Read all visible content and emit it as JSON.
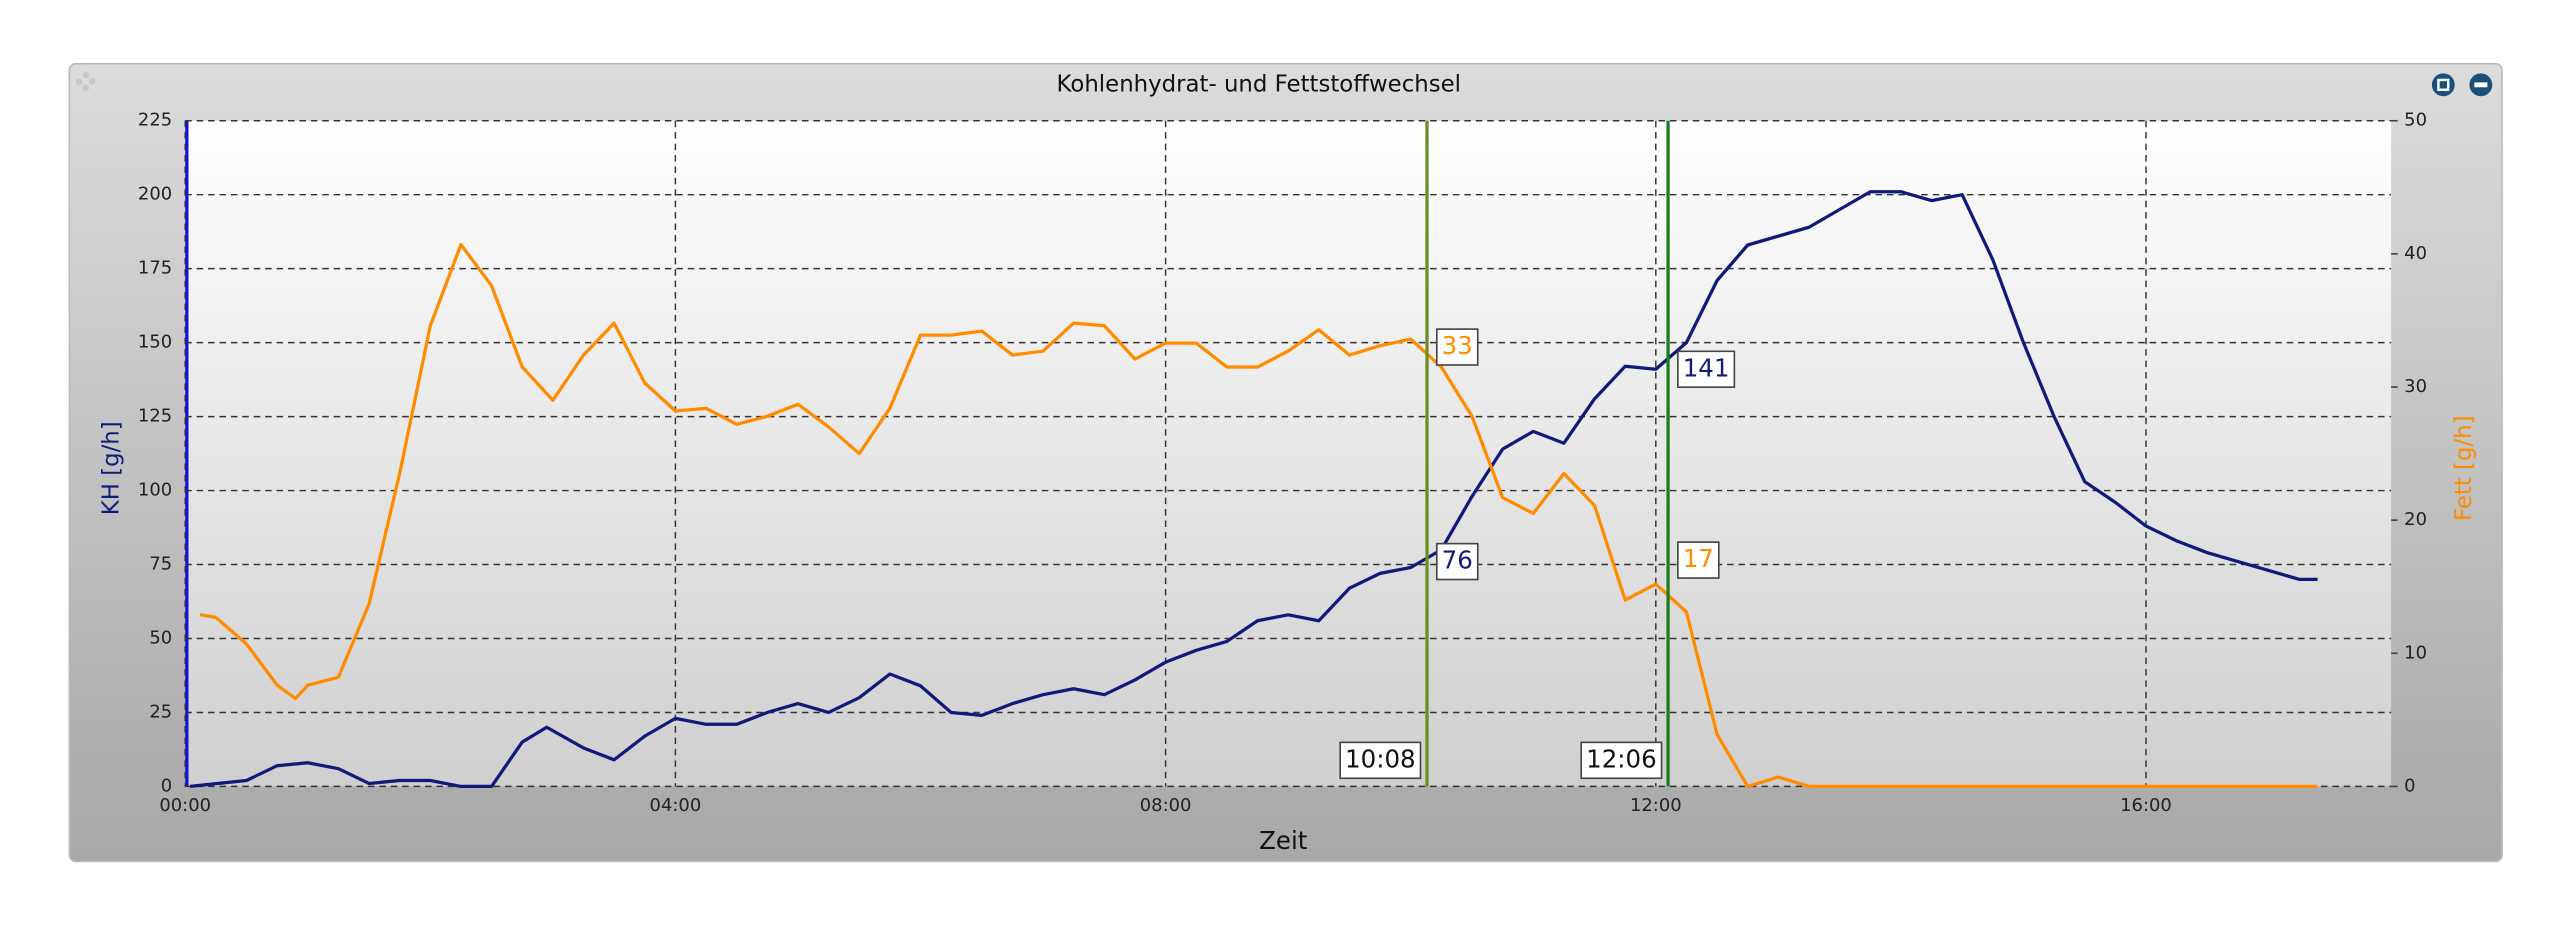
{
  "chart_data": {
    "type": "line",
    "title": "Kohlenhydrat- und Fettstoffwechsel",
    "xlabel": "Zeit",
    "ylabel": "KH [g/h]",
    "y2label": "Fett [g/h]",
    "xlim": [
      0,
      18
    ],
    "xticks": [
      {
        "value": 0,
        "label": "00:00"
      },
      {
        "value": 4,
        "label": "04:00"
      },
      {
        "value": 8,
        "label": "08:00"
      },
      {
        "value": 12,
        "label": "12:00"
      },
      {
        "value": 16,
        "label": "16:00"
      }
    ],
    "ylim": [
      0,
      225
    ],
    "yticks": [
      0,
      25,
      50,
      75,
      100,
      125,
      150,
      175,
      200,
      225
    ],
    "y2lim": [
      0,
      50
    ],
    "y2ticks": [
      0,
      10,
      20,
      30,
      40,
      50
    ],
    "grid": true,
    "series": [
      {
        "color": "#101a7a",
        "axis": "y",
        "x": [
          0.04,
          0.5,
          0.75,
          1,
          1.25,
          1.5,
          1.75,
          2,
          2.25,
          2.5,
          2.75,
          2.95,
          3.25,
          3.5,
          3.75,
          4,
          4.25,
          4.5,
          4.75,
          5,
          5.25,
          5.5,
          5.75,
          6,
          6.25,
          6.5,
          6.75,
          7,
          7.25,
          7.5,
          7.75,
          8,
          8.25,
          8.5,
          8.75,
          9,
          9.25,
          9.5,
          9.75,
          10,
          10.25,
          10.5,
          10.75,
          11,
          11.25,
          11.5,
          11.75,
          12,
          12.25,
          12.5,
          12.75,
          13,
          13.25,
          13.5,
          13.75,
          14,
          14.25,
          14.5,
          14.75,
          15,
          15.25,
          15.5,
          15.75,
          16,
          16.25,
          16.5,
          16.75,
          17,
          17.25,
          17.4
        ],
        "values": [
          0,
          2,
          7,
          8,
          6,
          1,
          2,
          2,
          0,
          0,
          15,
          20,
          13,
          9,
          17,
          23,
          21,
          21,
          25,
          28,
          25,
          30,
          38,
          34,
          25,
          24,
          28,
          31,
          33,
          31,
          36,
          42,
          46,
          49,
          56,
          58,
          56,
          67,
          72,
          74,
          80,
          98,
          114,
          120,
          116,
          131,
          142,
          141,
          150,
          171,
          183,
          186,
          189,
          195,
          201,
          201,
          198,
          200,
          178,
          150,
          125,
          103,
          96,
          88,
          83,
          79,
          76,
          73,
          70,
          70
        ]
      },
      {
        "color": "#ff8c00",
        "axis": "y2",
        "x": [
          0.12,
          0.25,
          0.5,
          0.75,
          0.9,
          1,
          1.25,
          1.5,
          1.75,
          2,
          2.25,
          2.5,
          2.75,
          3,
          3.25,
          3.5,
          3.75,
          4,
          4.25,
          4.5,
          4.75,
          5,
          5.25,
          5.5,
          5.75,
          6,
          6.25,
          6.5,
          6.75,
          7,
          7.25,
          7.5,
          7.75,
          8,
          8.25,
          8.5,
          8.75,
          9,
          9.25,
          9.5,
          9.75,
          10,
          10.25,
          10.5,
          10.75,
          11,
          11.25,
          11.5,
          11.75,
          12,
          12.25,
          12.5,
          12.75,
          13,
          13.25,
          17.4
        ],
        "values": [
          12.9,
          12.7,
          10.7,
          7.6,
          6.6,
          7.6,
          8.2,
          13.7,
          23.5,
          34.6,
          40.7,
          37.6,
          31.5,
          29,
          32.4,
          34.8,
          30.3,
          28.2,
          28.4,
          27.2,
          27.8,
          28.7,
          27,
          25,
          28.4,
          33.9,
          33.9,
          34.2,
          32.4,
          32.7,
          34.8,
          34.6,
          32.1,
          33.3,
          33.3,
          31.5,
          31.5,
          32.7,
          34.3,
          32.4,
          33.1,
          33.6,
          31.5,
          27.8,
          21.7,
          20.5,
          23.5,
          21.1,
          14,
          15.2,
          13.1,
          3.9,
          0,
          0.7,
          0,
          0
        ]
      }
    ],
    "markers": [
      {
        "x": 10.133,
        "label": "10:08",
        "color": "#6b8e23",
        "values": [
          76,
          33
        ]
      },
      {
        "x": 12.1,
        "label": "12:06",
        "color": "#1e7b1e",
        "values": [
          141,
          17
        ]
      }
    ]
  }
}
